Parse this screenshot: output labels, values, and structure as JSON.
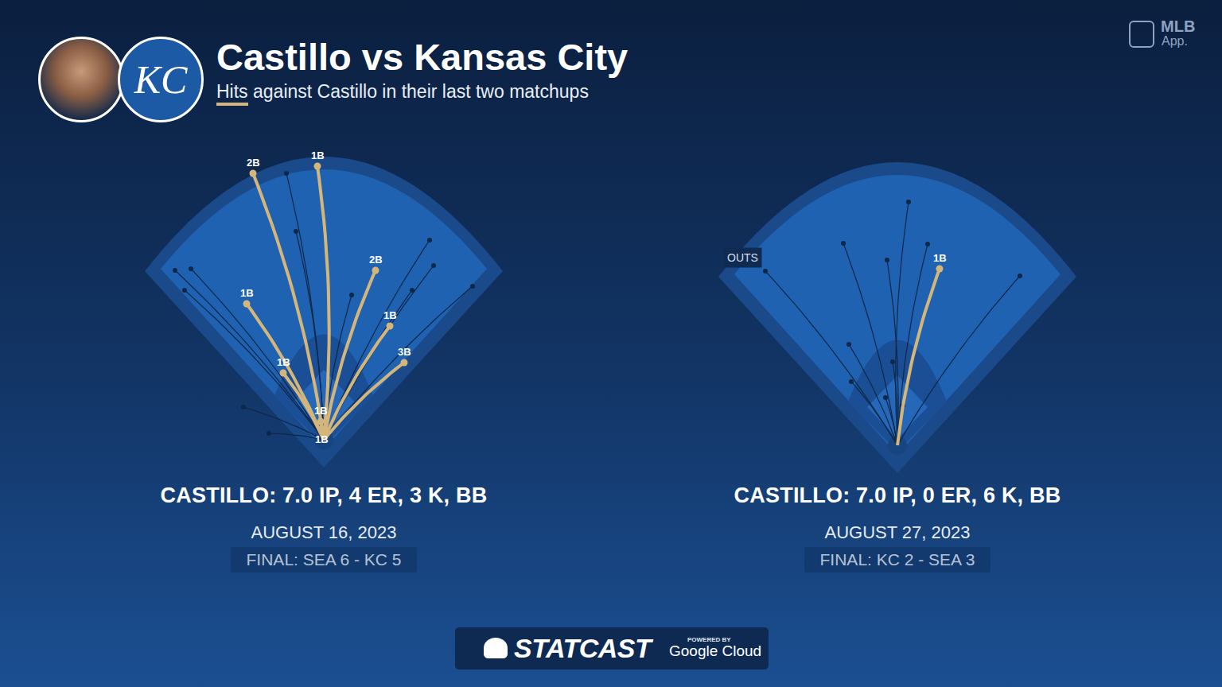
{
  "header": {
    "title": "Castillo vs Kansas City",
    "subtitle": "Hits against Castillo in their last two matchups",
    "logo": "KC"
  },
  "corner": {
    "brand": "MLB",
    "app": "App."
  },
  "footer": {
    "brand": "STATCAST",
    "powered": "POWERED BY",
    "partner": "Google Cloud"
  },
  "chart_data": [
    {
      "type": "spray",
      "title": "CASTILLO: 7.0 IP, 4 ER, 3 K, BB",
      "subtitle": "AUGUST 16, 2023",
      "caption": "FINAL: SEA 6 - KC 5",
      "xlim": [
        -230,
        230
      ],
      "ylim": [
        -40,
        400
      ],
      "tick_labels": false,
      "hits": {
        "color": "#d4b67a",
        "x": [
          -89,
          -8,
          65,
          -97,
          83,
          101,
          -51,
          -4,
          -3
        ],
        "y": [
          335,
          344,
          213,
          171,
          143,
          97,
          84,
          23,
          13
        ],
        "labels": [
          "2B",
          "1B",
          "2B",
          "1B",
          "1B",
          "3B",
          "1B",
          "1B",
          "1B"
        ]
      },
      "outs": {
        "color": "#0f2748",
        "x": [
          -47,
          -35,
          -187,
          -167,
          -175,
          133,
          138,
          111,
          187,
          35,
          -101,
          -69
        ],
        "y": [
          335,
          262,
          213,
          215,
          188,
          251,
          219,
          188,
          193,
          182,
          41,
          8
        ]
      }
    },
    {
      "type": "spray",
      "title": "CASTILLO: 7.0 IP, 0 ER, 6 K, BB",
      "subtitle": "AUGUST 27, 2023",
      "caption": "FINAL: KC 2 - SEA 3",
      "xlim": [
        -230,
        230
      ],
      "ylim": [
        -40,
        400
      ],
      "tick_labels": false,
      "outs_label": "OUTS",
      "hits": {
        "color": "#d4b67a",
        "x": [
          53
        ],
        "y": [
          222
        ],
        "labels": [
          "1B"
        ]
      },
      "outs": {
        "color": "#0f2748",
        "x": [
          -166,
          -68,
          14,
          -13,
          38,
          154,
          -61,
          -58,
          -15,
          -6,
          7
        ],
        "y": [
          219,
          254,
          306,
          233,
          253,
          213,
          127,
          80,
          60,
          105,
          50
        ]
      }
    }
  ]
}
